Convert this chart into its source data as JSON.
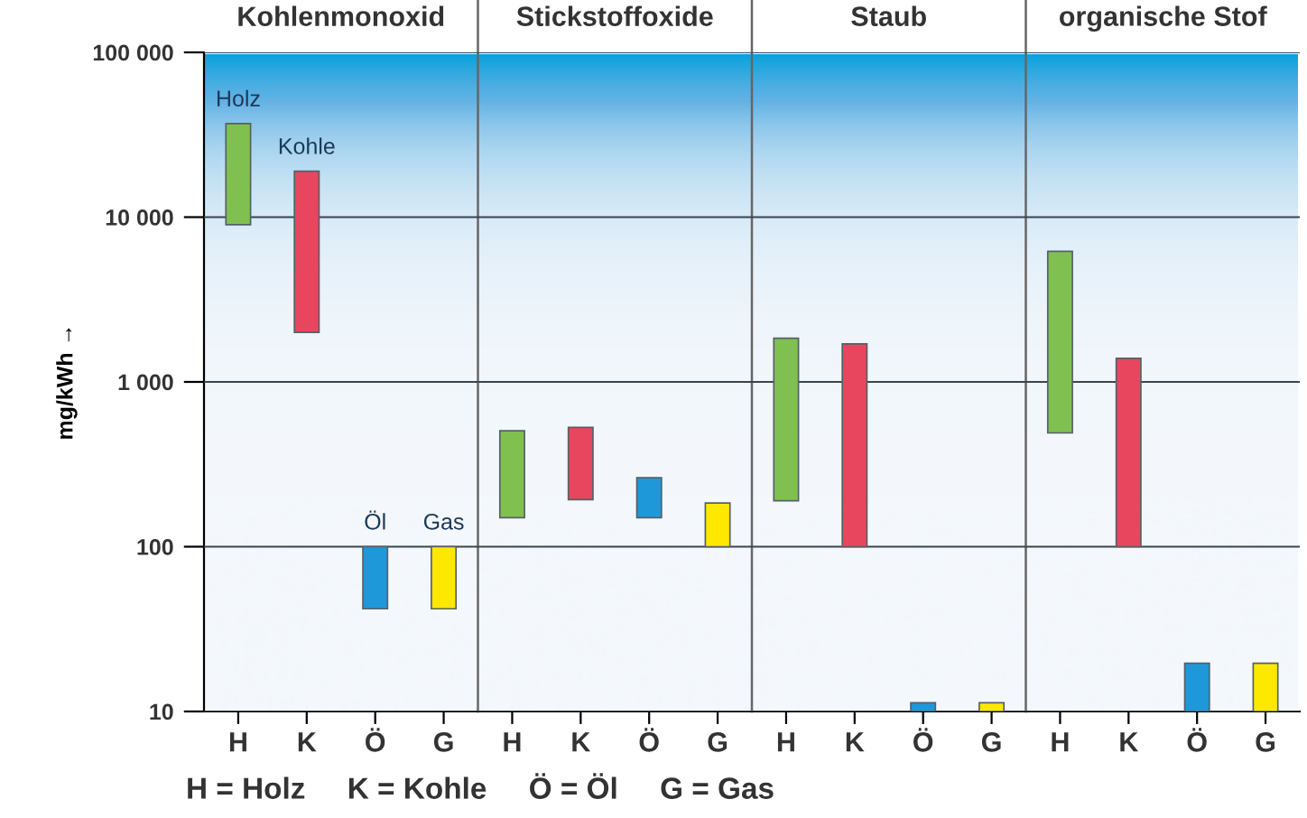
{
  "chart_data": {
    "type": "bar",
    "categories": [
      "H",
      "K",
      "Ö",
      "G",
      "H",
      "K",
      "Ö",
      "G",
      "H",
      "K",
      "Ö",
      "G",
      "H",
      "K",
      "Ö",
      "G"
    ],
    "base": [
      9000,
      2000,
      42,
      42,
      150,
      193,
      150,
      100,
      190,
      100,
      10,
      10,
      490,
      100,
      10,
      10
    ],
    "values": [
      28000,
      17000,
      58,
      58,
      355,
      337,
      112,
      84,
      1650,
      1600,
      1.3,
      1.3,
      5710,
      1290,
      9.6,
      9.6
    ],
    "colors": [
      "#80c050",
      "#e8465e",
      "#1e98d8",
      "#ffe800",
      "#80c050",
      "#e8465e",
      "#1e98d8",
      "#ffe800",
      "#80c050",
      "#e8465e",
      "#1e98d8",
      "#ffe800",
      "#80c050",
      "#e8465e",
      "#1e98d8",
      "#ffe800"
    ],
    "log": true,
    "ylim": [
      10,
      100000
    ],
    "yticks": [
      {
        "value": 10,
        "label": "10"
      },
      {
        "value": 100,
        "label": "100"
      },
      {
        "value": 1000,
        "label": "1 000"
      },
      {
        "value": 10000,
        "label": "10 000"
      },
      {
        "value": 100000,
        "label": "100 000"
      }
    ],
    "ylabel": "mg/kWh →",
    "grid": "y",
    "annotations": [
      "Kohlenmonoxid",
      "Stickstoffoxide",
      "Staub",
      "organische Stof",
      {
        "text": "Holz",
        "x": "H",
        "y": 37000
      },
      {
        "text": "Kohle",
        "x": "K",
        "y": 19000
      },
      {
        "text": "Öl",
        "x": "Ö",
        "y": 100
      },
      {
        "text": "Gas",
        "x": "G",
        "y": 100
      },
      "H = Holz     K = Kohle     Ö = Öl     G = Gas"
    ]
  }
}
